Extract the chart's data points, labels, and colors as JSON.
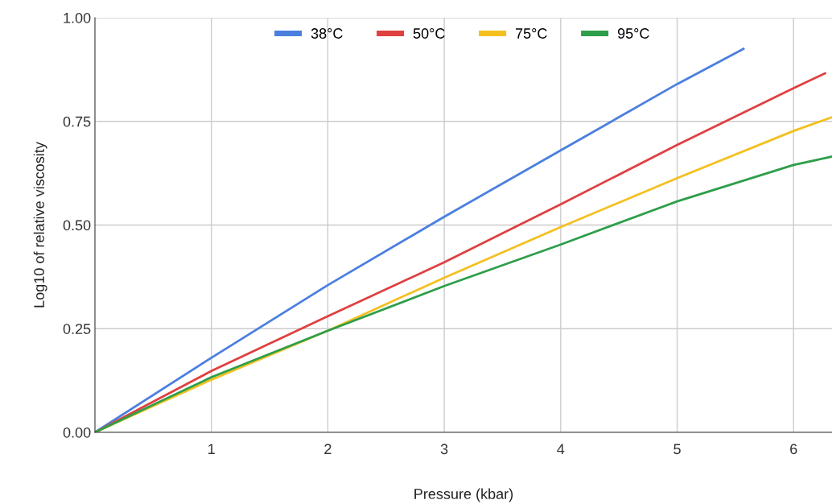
{
  "chart_data": {
    "type": "line",
    "xlabel": "Pressure (kbar)",
    "ylabel": "Log10 of relative viscosity",
    "xlim": [
      0,
      6.33
    ],
    "xticks": [
      1,
      2,
      3,
      4,
      5,
      6
    ],
    "ylim": [
      0,
      1
    ],
    "yticks": [
      {
        "value": 0,
        "label": "0.00"
      },
      {
        "value": 0.25,
        "label": "0.25"
      },
      {
        "value": 0.5,
        "label": "0.50"
      },
      {
        "value": 0.75,
        "label": "0.75"
      },
      {
        "value": 1,
        "label": "1.00"
      }
    ],
    "grid": true,
    "legend": "top",
    "marker": "none",
    "line_style": "solid",
    "series": [
      {
        "name": "38°C",
        "color": "#4a7fe0",
        "x": [
          0,
          1,
          2,
          3,
          4,
          5,
          5.57
        ],
        "values": [
          0,
          0.18,
          0.355,
          0.52,
          0.68,
          0.84,
          0.925
        ]
      },
      {
        "name": "50°C",
        "color": "#e04040",
        "x": [
          0,
          1,
          2,
          3,
          4,
          5,
          6,
          6.27
        ],
        "values": [
          0,
          0.148,
          0.28,
          0.41,
          0.55,
          0.693,
          0.83,
          0.866
        ]
      },
      {
        "name": "75°C",
        "color": "#f4c020",
        "x": [
          0,
          1,
          2,
          3,
          4,
          5,
          6,
          6.33
        ],
        "values": [
          0,
          0.127,
          0.245,
          0.373,
          0.495,
          0.613,
          0.727,
          0.76
        ]
      },
      {
        "name": "95°C",
        "color": "#2e9e4a",
        "x": [
          0,
          1,
          2,
          3,
          4,
          5,
          6,
          6.33
        ],
        "values": [
          0,
          0.133,
          0.245,
          0.353,
          0.453,
          0.557,
          0.645,
          0.665
        ]
      }
    ]
  }
}
